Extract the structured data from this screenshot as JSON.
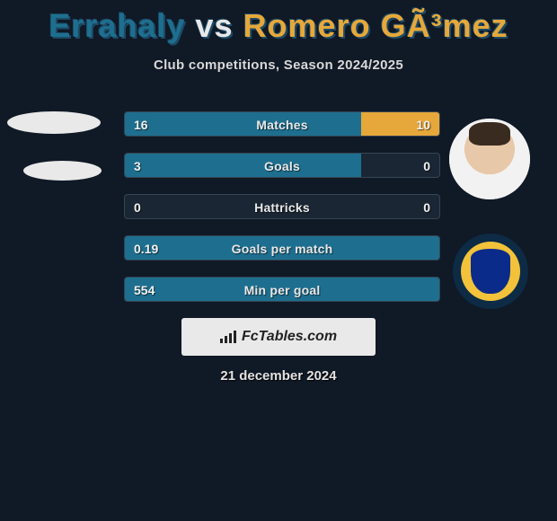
{
  "title": {
    "p1": "Errahaly",
    "vs": "vs",
    "p2": "Romero GÃ³mez"
  },
  "subtitle": "Club competitions, Season 2024/2025",
  "brand": "FcTables.com",
  "date": "21 december 2024",
  "colors": {
    "bg": "#101926",
    "p1": "#1e6f8f",
    "p2": "#e6a83a",
    "bar_bg": "#1a2634",
    "bar_border": "#354554",
    "text": "#e8e8e8",
    "brand_bg": "#e9e9e9",
    "badge_outer": "#0d2b45",
    "badge_ring": "#f2c23a",
    "badge_shield": "#0b2b8a"
  },
  "bars": [
    {
      "label": "Matches",
      "l": "16",
      "r": "10",
      "l_pct": 75,
      "r_pct": 25
    },
    {
      "label": "Goals",
      "l": "3",
      "r": "0",
      "l_pct": 75,
      "r_pct": 0
    },
    {
      "label": "Hattricks",
      "l": "0",
      "r": "0",
      "l_pct": 0,
      "r_pct": 0
    },
    {
      "label": "Goals per match",
      "l": "0.19",
      "r": "",
      "l_pct": 100,
      "r_pct": 0
    },
    {
      "label": "Min per goal",
      "l": "554",
      "r": "",
      "l_pct": 100,
      "r_pct": 0
    }
  ]
}
